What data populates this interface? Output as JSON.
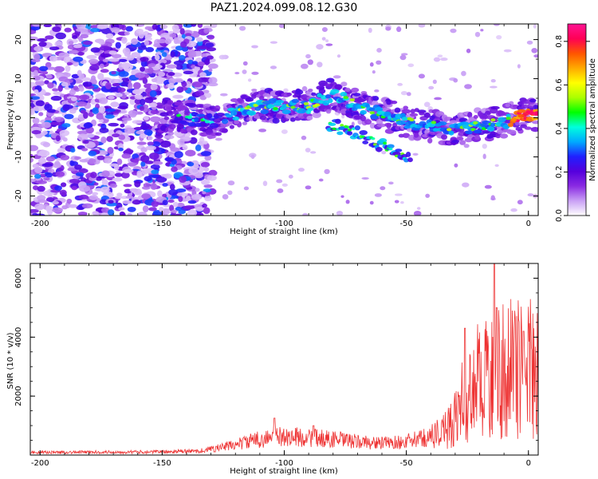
{
  "title": "PAZ1.2024.099.08.12.G30",
  "chart_data": [
    {
      "type": "heatmap",
      "xlabel": "Height of straight line (km)",
      "ylabel": "Frequency (Hz)",
      "xlim": [
        -204,
        4
      ],
      "ylim": [
        -25,
        24
      ],
      "x_ticks": [
        -200,
        -150,
        -100,
        -50,
        0
      ],
      "y_ticks": [
        -20,
        -10,
        0,
        10,
        20
      ],
      "colorbar": {
        "label": "Normalized spectral amplitude",
        "range": [
          0,
          0.88
        ],
        "ticks": [
          0.0,
          0.2,
          0.4,
          0.6,
          0.8
        ],
        "colors": [
          "#ffffff",
          "#c9a0f5",
          "#8a2be2",
          "#5500dd",
          "#2020ff",
          "#00aaff",
          "#00ffdd",
          "#00ff00",
          "#aaff00",
          "#ffff00",
          "#ffaa00",
          "#ff5500",
          "#ff0055",
          "#ff1493"
        ]
      },
      "ridge": {
        "x": [
          -150,
          -140,
          -130,
          -120,
          -110,
          -100,
          -90,
          -80,
          -70,
          -60,
          -50,
          -40,
          -30,
          -20,
          -10,
          -5,
          0,
          4
        ],
        "freq": [
          0,
          0,
          -1,
          1,
          3,
          3,
          3,
          6,
          3,
          1,
          -1,
          -2,
          -3,
          -2,
          -1,
          0,
          1,
          1
        ],
        "branch_x": [
          -80,
          -70,
          -60,
          -50
        ],
        "branch_freq": [
          -2,
          -4,
          -7,
          -10
        ]
      },
      "grid": false
    },
    {
      "type": "line",
      "xlabel": "Height of straight line (km)",
      "ylabel": "SNR (10 * v/v)",
      "xlim": [
        -204,
        4
      ],
      "ylim": [
        0,
        6500
      ],
      "x_ticks": [
        -200,
        -150,
        -100,
        -50,
        0
      ],
      "y_ticks": [
        2000,
        4000,
        6000
      ],
      "series": [
        {
          "color": "#ee3333",
          "envelope": {
            "x": [
              -204,
              -150,
              -135,
              -125,
              -110,
              -100,
              -90,
              -80,
              -70,
              -60,
              -50,
              -40,
              -35,
              -30,
              -25,
              -20,
              -15,
              -10,
              -5,
              0,
              4
            ],
            "y": [
              100,
              120,
              150,
              300,
              600,
              700,
              650,
              600,
              500,
              450,
              500,
              700,
              900,
              1500,
              2500,
              3000,
              3300,
              3400,
              3500,
              3500,
              3400
            ]
          },
          "peaks": [
            {
              "x": -104,
              "y": 1250
            },
            {
              "x": -88,
              "y": 1000
            },
            {
              "x": -26,
              "y": 4300
            },
            {
              "x": -14,
              "y": 6500
            },
            {
              "x": -13,
              "y": 5000
            },
            {
              "x": -2,
              "y": 4200
            }
          ]
        }
      ],
      "grid": false
    }
  ]
}
